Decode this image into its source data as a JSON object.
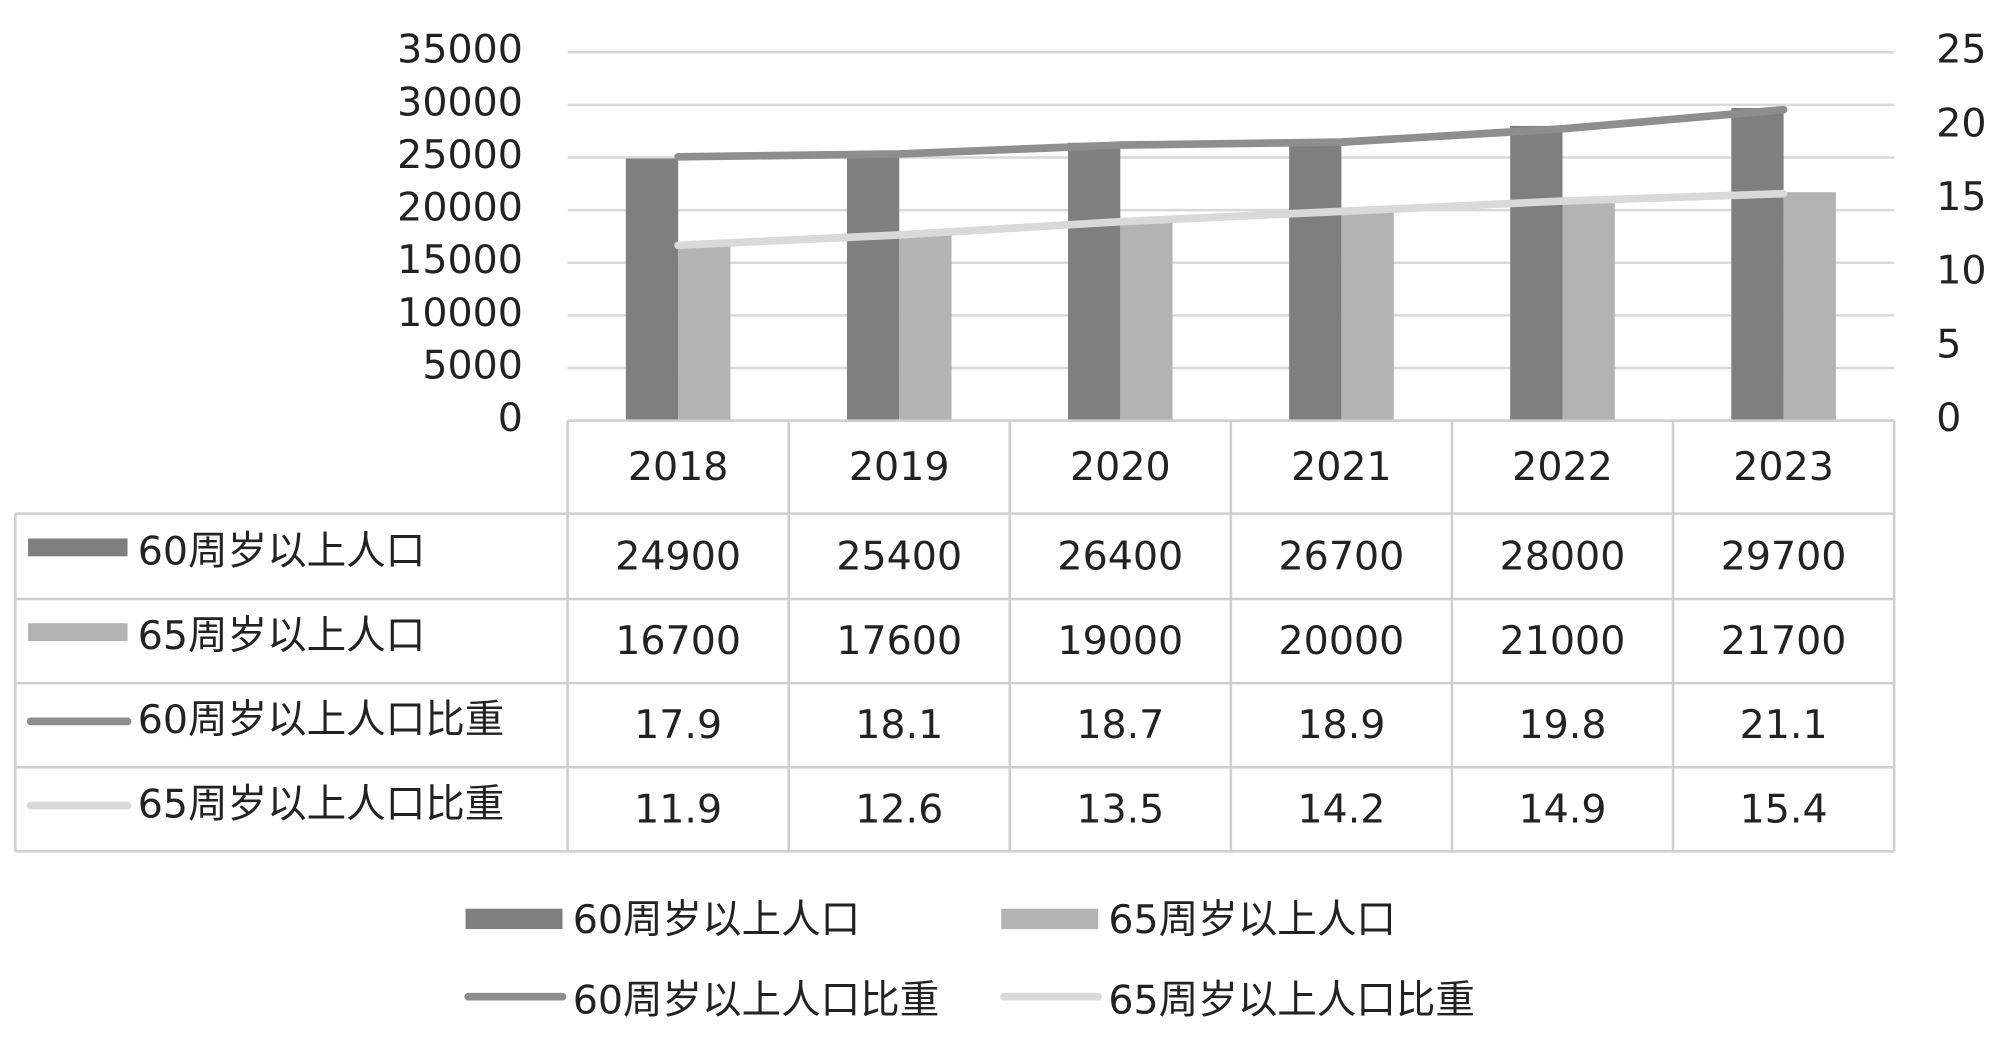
{
  "chart_data": {
    "type": "bar",
    "categories": [
      "2018",
      "2019",
      "2020",
      "2021",
      "2022",
      "2023"
    ],
    "series": [
      {
        "name": "60周岁以上人口",
        "type": "bar",
        "color": "#7f7f7f",
        "values": [
          24900,
          25400,
          26400,
          26700,
          28000,
          29700
        ]
      },
      {
        "name": "65周岁以上人口",
        "type": "bar",
        "color": "#b3b3b3",
        "values": [
          16700,
          17600,
          19000,
          20000,
          21000,
          21700
        ]
      },
      {
        "name": "60周岁以上人口比重",
        "type": "line",
        "axis": "y2",
        "color": "#8e8e8e",
        "values": [
          17.9,
          18.1,
          18.7,
          18.9,
          19.8,
          21.1
        ]
      },
      {
        "name": "65周岁以上人口比重",
        "type": "line",
        "axis": "y2",
        "color": "#d9d9d9",
        "values": [
          11.9,
          12.6,
          13.5,
          14.2,
          14.9,
          15.4
        ]
      }
    ],
    "ylim": [
      0,
      35000
    ],
    "yticks": [
      0,
      5000,
      10000,
      15000,
      20000,
      25000,
      30000,
      35000
    ],
    "y2lim": [
      0,
      25
    ],
    "y2ticks": [
      0,
      5,
      10,
      15,
      20,
      25
    ],
    "grid": true,
    "data_table": true,
    "legend": "bottom"
  }
}
